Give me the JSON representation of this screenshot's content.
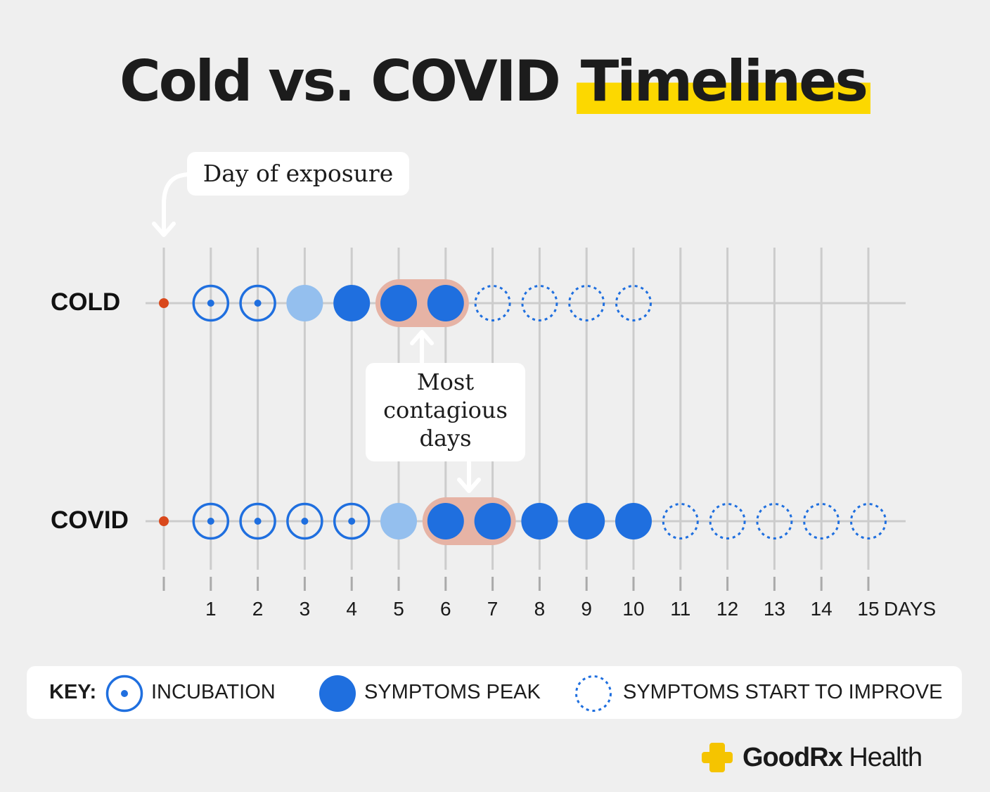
{
  "title": {
    "part1": "Cold vs. COVID",
    "highlight": "Timelines"
  },
  "callouts": {
    "exposure": "Day of exposure",
    "contagious_lines": [
      "Most",
      "contagious",
      "days"
    ]
  },
  "rows": [
    {
      "label": "COLD",
      "days": [
        "incubation",
        "incubation",
        "onset",
        "peak",
        "peak",
        "peak",
        "improving",
        "improving",
        "improving",
        "improving"
      ],
      "most_contagious_days": [
        5,
        6
      ]
    },
    {
      "label": "COVID",
      "days": [
        "incubation",
        "incubation",
        "incubation",
        "incubation",
        "onset",
        "peak",
        "peak",
        "peak",
        "peak",
        "peak",
        "improving",
        "improving",
        "improving",
        "improving",
        "improving"
      ],
      "most_contagious_days": [
        6,
        7
      ]
    }
  ],
  "axis": {
    "ticks": [
      "1",
      "2",
      "3",
      "4",
      "5",
      "6",
      "7",
      "8",
      "9",
      "10",
      "11",
      "12",
      "13",
      "14",
      "15"
    ],
    "unit_label": "DAYS"
  },
  "key": {
    "title": "KEY:",
    "incubation": "INCUBATION",
    "peak": "SYMPTOMS PEAK",
    "improve": "SYMPTOMS START TO IMPROVE"
  },
  "brand": {
    "name_bold": "GoodRx",
    "name_regular": " Health"
  },
  "colors": {
    "blue": "#1f6fdf",
    "light_blue": "#94bfee",
    "contagious_band": "#e6b3a5",
    "exposure_dot": "#d9481c",
    "highlight": "#fcd800",
    "grid": "#cccccc",
    "brand_yellow": "#f5c400"
  }
}
